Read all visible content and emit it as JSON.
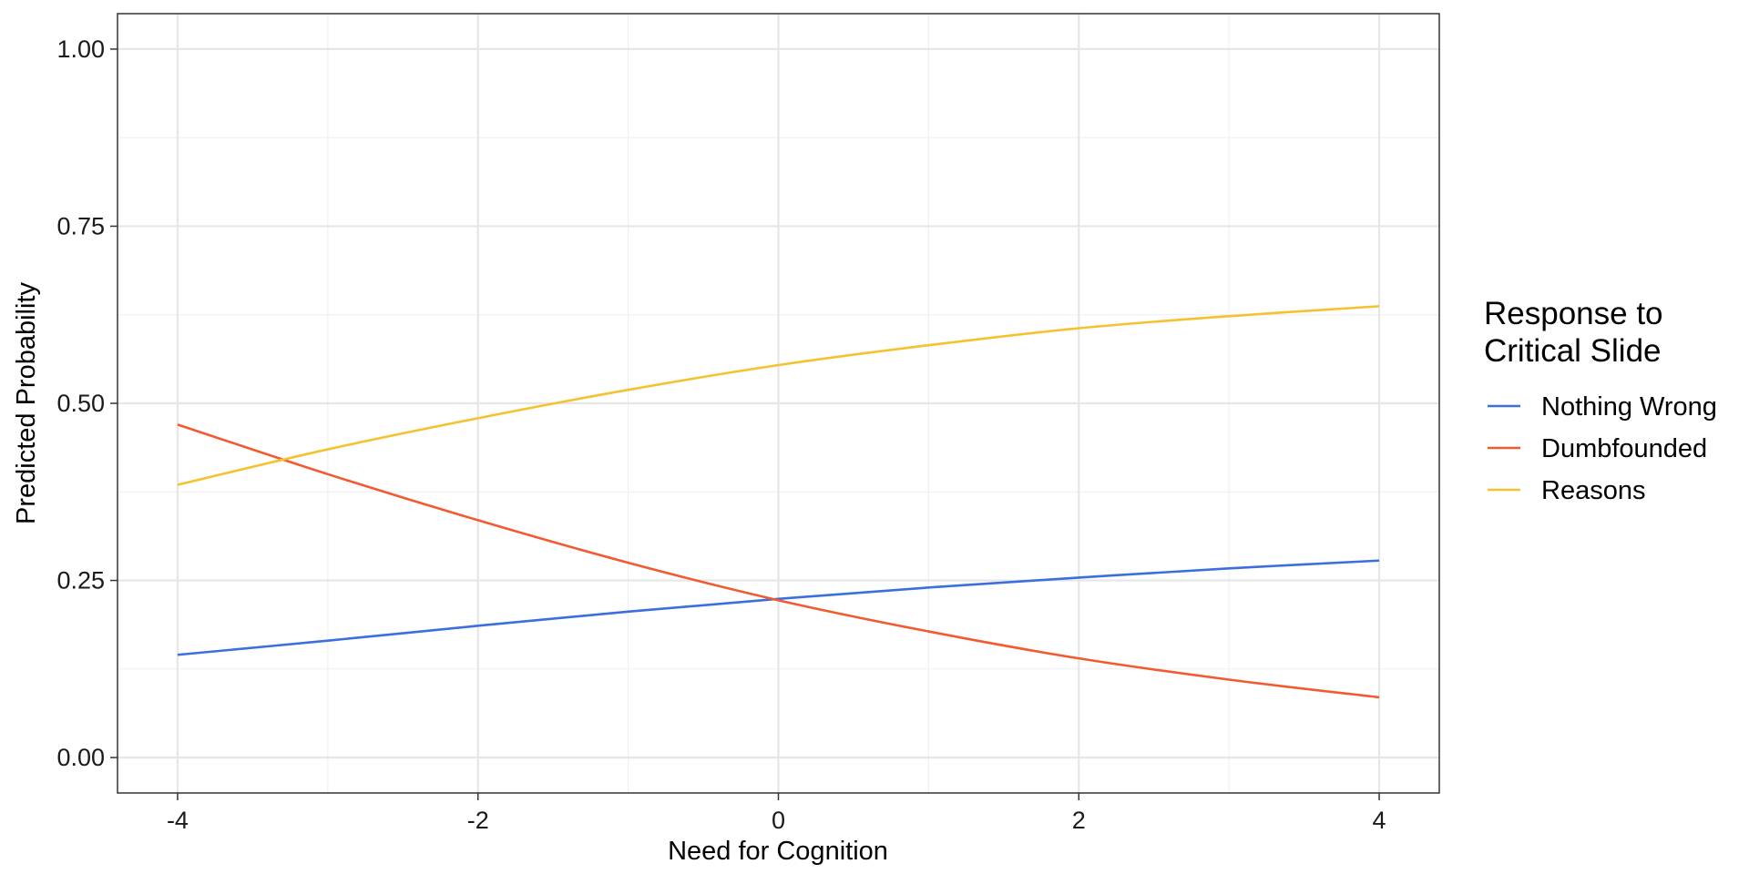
{
  "chart_data": {
    "type": "line",
    "title": "",
    "xlabel": "Need for Cognition",
    "ylabel": "Predicted Probability",
    "xlim": [
      -4.4,
      4.4
    ],
    "ylim": [
      -0.05,
      1.05
    ],
    "x_ticks": [
      -4,
      -2,
      0,
      2,
      4
    ],
    "x_tick_labels": [
      "-4",
      "-2",
      "0",
      "2",
      "4"
    ],
    "y_ticks": [
      0,
      0.25,
      0.5,
      0.75,
      1.0
    ],
    "y_tick_labels": [
      "0.00",
      "0.25",
      "0.50",
      "0.75",
      "1.00"
    ],
    "grid": true,
    "legend": {
      "title_lines": [
        "Response to",
        "Critical Slide"
      ],
      "placement": "right"
    },
    "x": [
      -4,
      -3,
      -2,
      -1,
      0,
      1,
      2,
      3,
      4
    ],
    "series": [
      {
        "name": "Nothing Wrong",
        "color": "#3b6fe0",
        "values": [
          0.145,
          0.165,
          0.186,
          0.206,
          0.224,
          0.24,
          0.254,
          0.267,
          0.278
        ]
      },
      {
        "name": "Dumbfounded",
        "color": "#f25a30",
        "values": [
          0.47,
          0.4,
          0.335,
          0.275,
          0.222,
          0.178,
          0.14,
          0.11,
          0.085
        ]
      },
      {
        "name": "Reasons",
        "color": "#f5c22f",
        "values": [
          0.385,
          0.435,
          0.479,
          0.519,
          0.554,
          0.582,
          0.606,
          0.623,
          0.637
        ]
      }
    ]
  }
}
